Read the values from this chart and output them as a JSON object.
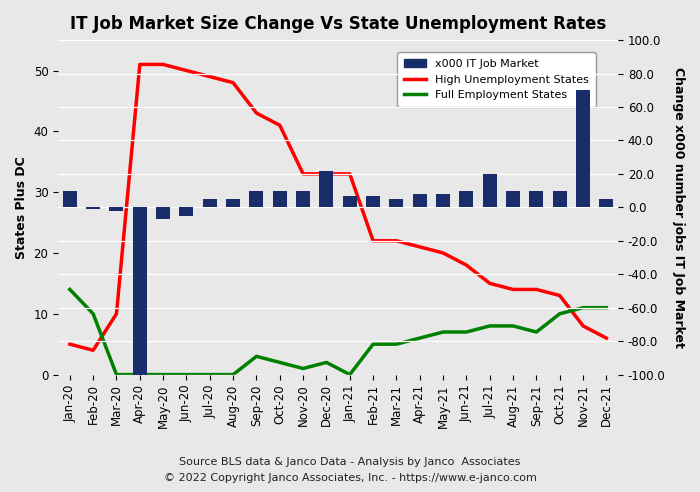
{
  "title": "IT Job Market Size Change Vs State Unemployment Rates",
  "ylabel_left": "States Plus DC",
  "ylabel_right": "Change x000 number jobs IT Job Market",
  "footer1": "Source BLS data & Janco Data - Analysis by Janco  Associates",
  "footer2": "© 2022 Copyright Janco Associates, Inc. - https://www.e-janco.com",
  "categories": [
    "Jan-20",
    "Feb-20",
    "Mar-20",
    "Apr-20",
    "May-20",
    "Jun-20",
    "Jul-20",
    "Aug-20",
    "Sep-20",
    "Oct-20",
    "Nov-20",
    "Dec-20",
    "Jan-21",
    "Feb-21",
    "Mar-21",
    "Apr-21",
    "May-21",
    "Jun-21",
    "Jul-21",
    "Aug-21",
    "Sep-21",
    "Oct-21",
    "Nov-21",
    "Dec-21"
  ],
  "bar_values_right": [
    10,
    -1,
    -2,
    -102,
    -7,
    -5,
    5,
    5,
    10,
    10,
    10,
    22,
    7,
    7,
    5,
    8,
    8,
    10,
    20,
    10,
    10,
    10,
    70,
    5
  ],
  "high_unemp_left": [
    5,
    4,
    10,
    51,
    51,
    50,
    49,
    48,
    43,
    41,
    33,
    33,
    33,
    22,
    22,
    21,
    20,
    18,
    15,
    14,
    14,
    13,
    8,
    6
  ],
  "full_emp_left": [
    14,
    10,
    0,
    0,
    0,
    0,
    0,
    0,
    3,
    2,
    1,
    2,
    0,
    5,
    5,
    6,
    7,
    7,
    8,
    8,
    7,
    10,
    11,
    11
  ],
  "left_ylim": [
    0,
    55
  ],
  "left_yticks": [
    0,
    10,
    20,
    30,
    40,
    50
  ],
  "right_ylim": [
    -100,
    100
  ],
  "right_yticks": [
    -100,
    -80,
    -60,
    -40,
    -20,
    0,
    20,
    40,
    60,
    80,
    100
  ],
  "bar_color": "#1a2d6b",
  "high_unemp_color": "#ff0000",
  "full_emp_color": "#008000",
  "bg_color": "#e8e8e8",
  "legend_bg": "#ffffff",
  "title_fontsize": 12,
  "label_fontsize": 9,
  "tick_fontsize": 8.5,
  "footer_fontsize": 8
}
